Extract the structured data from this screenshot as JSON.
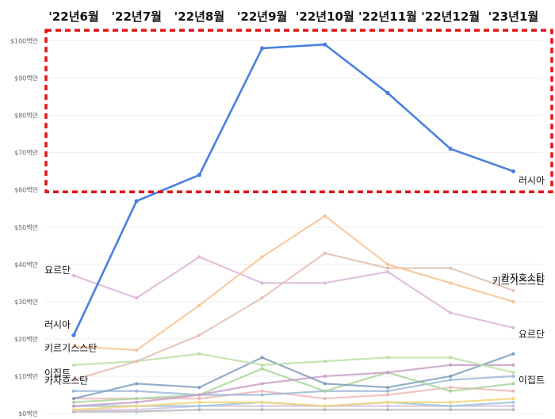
{
  "chart_data": {
    "type": "line",
    "x": [
      "'22년6월",
      "'22년7월",
      "'22년8월",
      "'22년9월",
      "'22년10월",
      "'22년11월",
      "'22년12월",
      "'23년1월"
    ],
    "ylim": [
      0,
      105
    ],
    "yticks": [
      "$0백만",
      "$10백만",
      "$20백만",
      "$30백만",
      "$40백만",
      "$50백만",
      "$60백만",
      "$70백만",
      "$80백만",
      "$90백만",
      "$100백만"
    ],
    "grid": true,
    "highlight_box": {
      "color": "#e01515",
      "style": "dashed",
      "around_series": "러시아"
    },
    "series": [
      {
        "name": "러시아",
        "color": "#4a7fe0",
        "values": [
          21,
          57,
          64,
          98,
          99,
          86,
          71,
          65
        ]
      },
      {
        "name": "키르기스스탄",
        "color": "#f6c48d",
        "values": [
          18,
          17,
          29,
          42,
          53,
          40,
          35,
          30
        ]
      },
      {
        "name": "카자흐스탄",
        "color": "#e3bfb1",
        "values": [
          9,
          14,
          21,
          31,
          43,
          39,
          39,
          33
        ]
      },
      {
        "name": "요르단",
        "color": "#dcb6d8",
        "values": [
          37,
          31,
          42,
          35,
          35,
          38,
          27,
          23
        ]
      },
      {
        "name": "이집트",
        "color": "#b9e0a4",
        "values": [
          13,
          14,
          16,
          13,
          14,
          15,
          15,
          11
        ]
      },
      {
        "name": "",
        "color": "#7f9fbd",
        "values": [
          4,
          8,
          7,
          15,
          8,
          7,
          10,
          16
        ]
      },
      {
        "name": "",
        "color": "#c8a0c6",
        "values": [
          2,
          3,
          5,
          8,
          10,
          11,
          13,
          13
        ]
      },
      {
        "name": "",
        "color": "#a9d69a",
        "values": [
          3,
          4,
          5,
          12,
          6,
          11,
          6,
          8
        ]
      },
      {
        "name": "",
        "color": "#9fb9d8",
        "values": [
          6,
          6,
          5,
          5,
          6,
          6,
          9,
          10
        ]
      },
      {
        "name": "",
        "color": "#f0b8b8",
        "values": [
          4,
          4,
          4,
          6,
          4,
          5,
          7,
          6
        ]
      },
      {
        "name": "",
        "color": "#f5d67a",
        "values": [
          1,
          2,
          3,
          3,
          2,
          3,
          3,
          4
        ]
      },
      {
        "name": "",
        "color": "#9ec7d6",
        "values": [
          2,
          2,
          2,
          3,
          2,
          3,
          2,
          3
        ]
      },
      {
        "name": "",
        "color": "#d5c3e6",
        "values": [
          1,
          1,
          2,
          2,
          2,
          2,
          2,
          2
        ]
      },
      {
        "name": "",
        "color": "#b8b8b8",
        "values": [
          0.5,
          0.5,
          1,
          1,
          1,
          1,
          1,
          1
        ]
      }
    ],
    "left_labels": [
      "요르단",
      "러시아",
      "카자흐스탄",
      "이집트",
      "키르기스스탄"
    ],
    "right_labels": [
      "러시아",
      "키르기스스탄",
      "카자흐스탄",
      "요르단",
      "이집트"
    ]
  }
}
